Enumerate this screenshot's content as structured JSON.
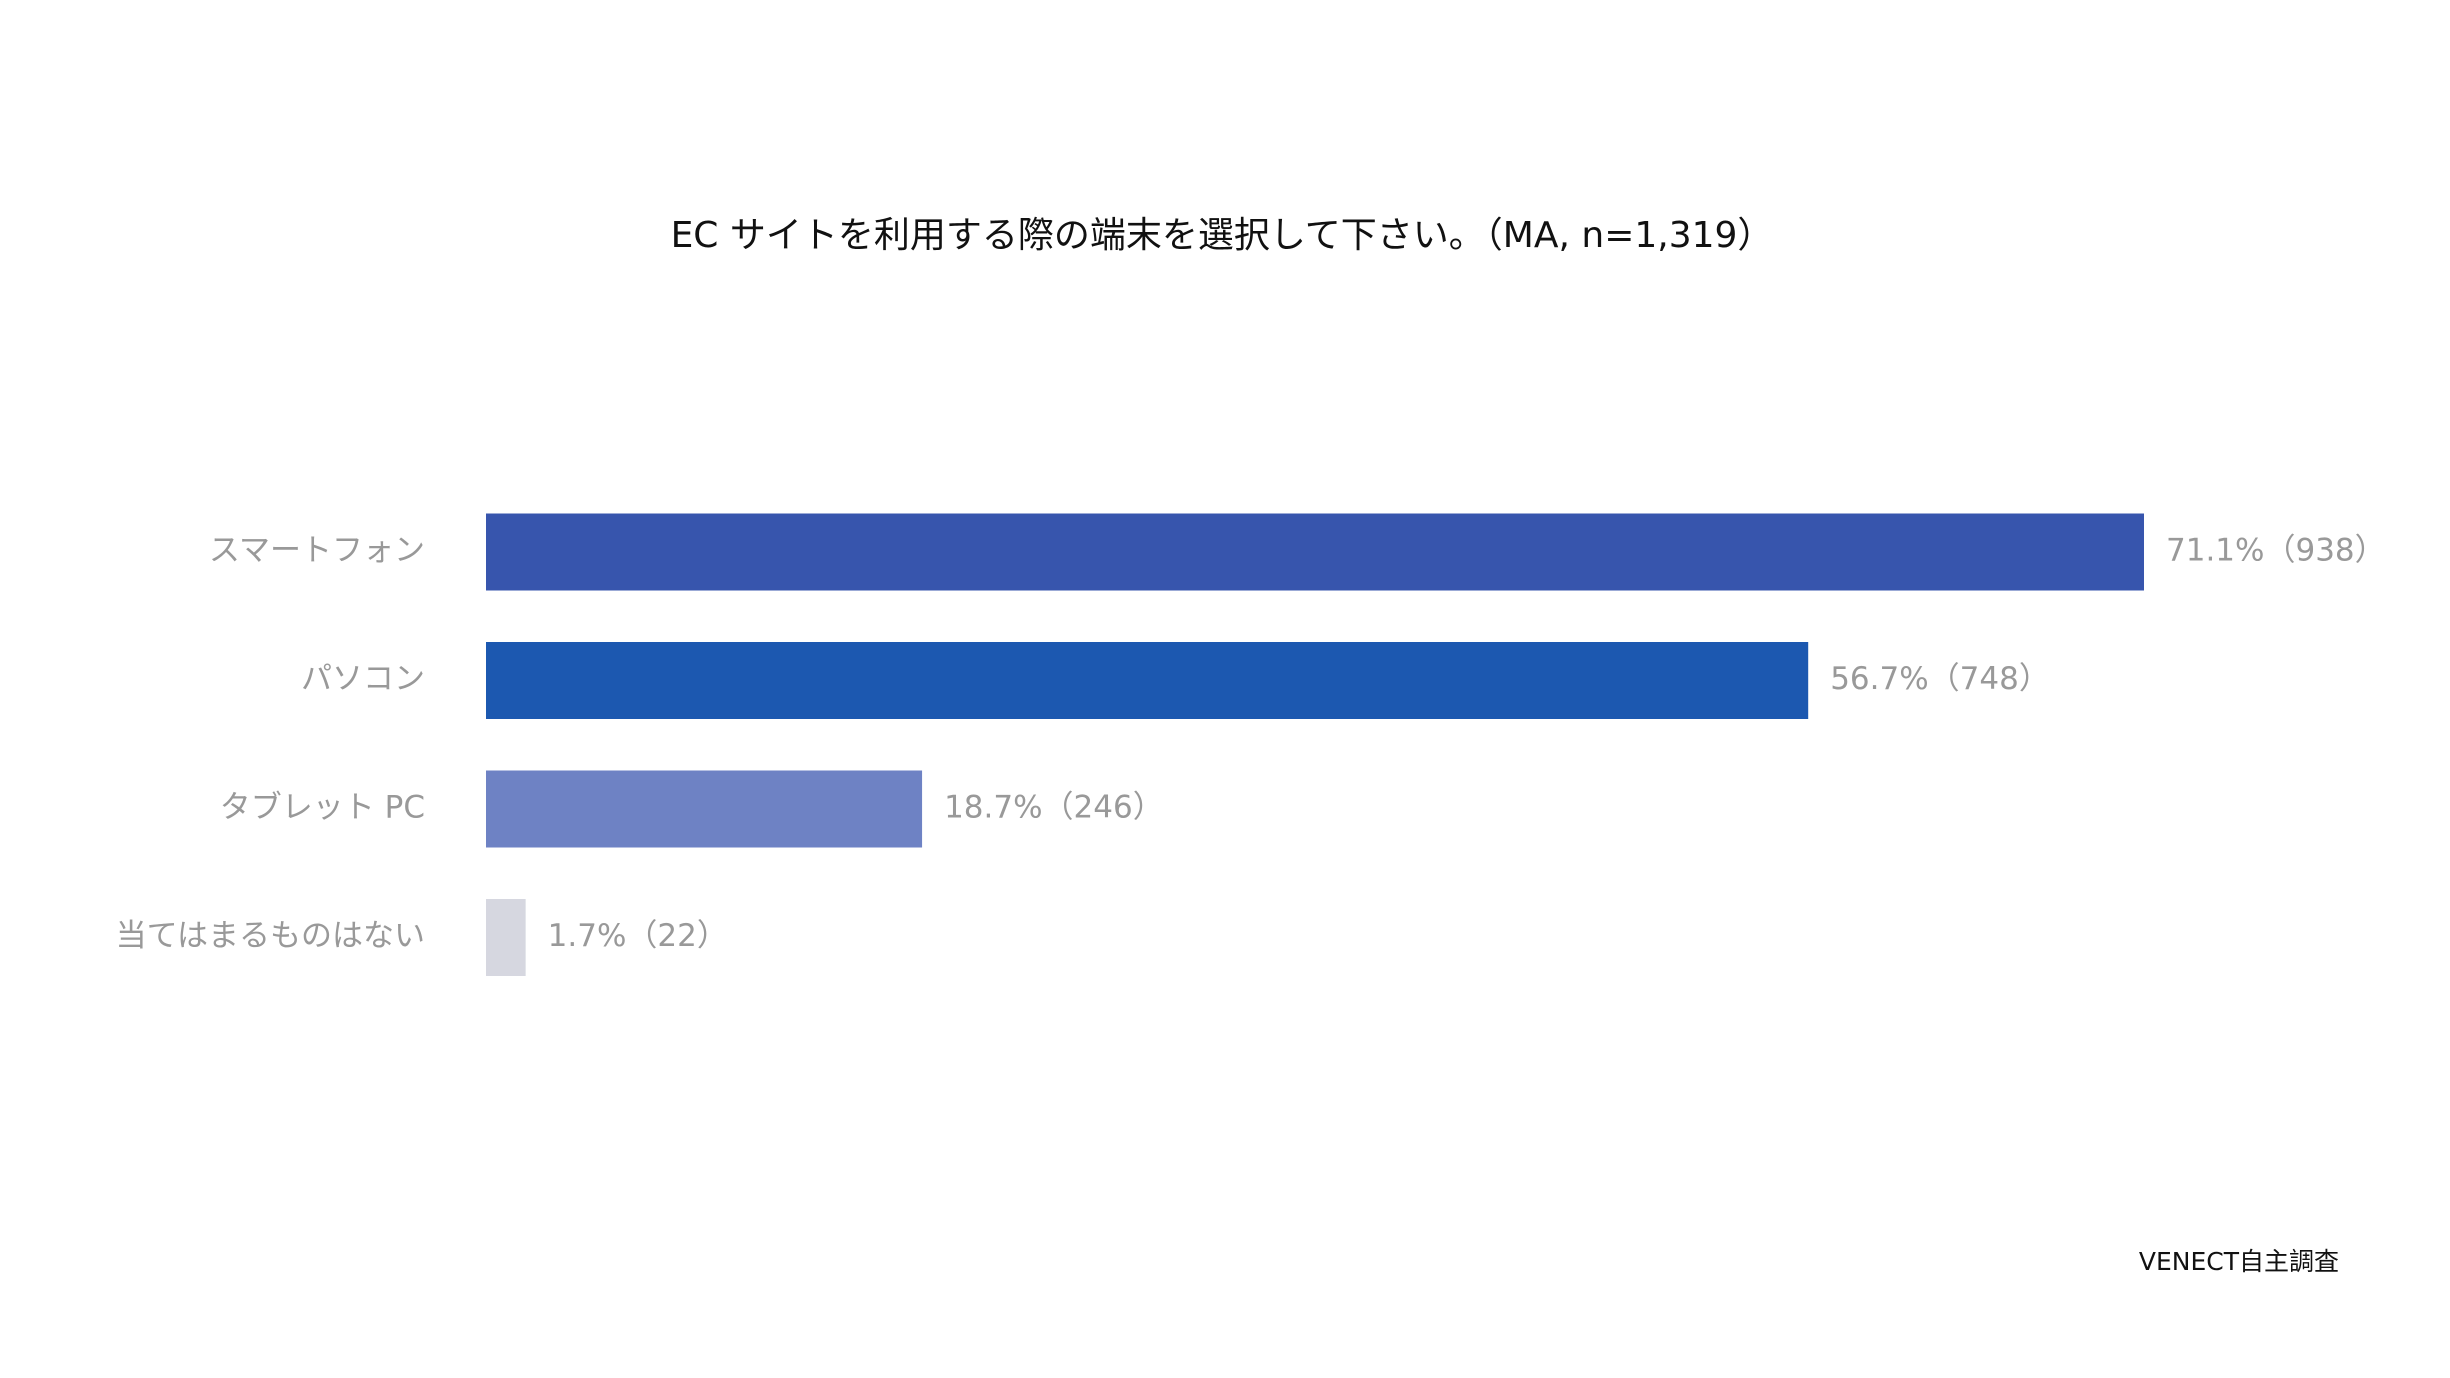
{
  "chart_data": {
    "type": "bar",
    "orientation": "horizontal",
    "title": "EC サイトを利用する際の端末を選択して下さい。（MA, n=1,319）",
    "categories": [
      "スマートフォン",
      "パソコン",
      "タブレット PC",
      "当てはまるものはない"
    ],
    "values": [
      71.1,
      56.7,
      18.7,
      1.7
    ],
    "value_labels": [
      "71.1%（938）",
      "56.7%（748）",
      "18.7%（246）",
      "1.7%（22）"
    ],
    "colors": [
      "#3755ad",
      "#1c58b0",
      "#6e82c4",
      "#d6d7e0"
    ],
    "source": "VENECT自主調査"
  }
}
